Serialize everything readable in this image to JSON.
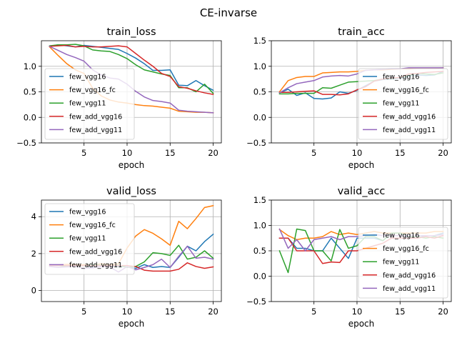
{
  "figure": {
    "suptitle": "CE-invarse"
  },
  "colors": {
    "few_vgg16": "#1f77b4",
    "few_vgg16_fc": "#ff7f0e",
    "few_vgg11": "#2ca02c",
    "few_add_vgg16": "#d62728",
    "few_add_vgg11": "#9467bd"
  },
  "chart_data": [
    {
      "type": "line",
      "title": "train_loss",
      "xlabel": "epoch",
      "ylabel": "",
      "xlim": [
        0.05,
        20.95
      ],
      "ylim": [
        -0.5,
        1.5
      ],
      "xticks": [
        5,
        10,
        15,
        20
      ],
      "yticks": [
        -0.5,
        0.0,
        0.5,
        1.0
      ],
      "ytick_labels": [
        "−0.5",
        "0.0",
        "0.5",
        "1.0"
      ],
      "grid": true,
      "legend": "lower-left",
      "x": [
        1,
        2,
        3,
        4,
        5,
        6,
        7,
        8,
        9,
        10,
        11,
        12,
        13,
        14,
        15,
        16,
        17,
        18,
        19,
        20
      ],
      "series": [
        {
          "name": "few_vgg16",
          "values": [
            1.39,
            1.42,
            1.4,
            1.38,
            1.41,
            1.39,
            1.37,
            1.35,
            1.33,
            1.25,
            1.16,
            1.05,
            0.92,
            0.92,
            0.93,
            0.63,
            0.62,
            0.72,
            0.62,
            0.53
          ]
        },
        {
          "name": "few_vgg16_fc",
          "values": [
            1.38,
            1.21,
            1.05,
            0.93,
            0.86,
            0.57,
            0.42,
            0.34,
            0.3,
            0.28,
            0.25,
            0.23,
            0.22,
            0.2,
            0.18,
            0.12,
            0.11,
            0.1,
            0.1,
            0.09
          ]
        },
        {
          "name": "few_vgg11",
          "values": [
            1.4,
            1.42,
            1.42,
            1.43,
            1.4,
            1.32,
            1.3,
            1.29,
            1.23,
            1.15,
            1.03,
            0.93,
            0.89,
            0.85,
            0.82,
            0.58,
            0.58,
            0.5,
            0.65,
            0.47
          ]
        },
        {
          "name": "few_add_vgg16",
          "values": [
            1.39,
            1.4,
            1.41,
            1.38,
            1.39,
            1.38,
            1.38,
            1.39,
            1.4,
            1.38,
            1.25,
            1.12,
            1.0,
            0.86,
            0.8,
            0.6,
            0.57,
            0.52,
            0.48,
            0.45
          ]
        },
        {
          "name": "few_add_vgg11",
          "values": [
            1.39,
            1.31,
            1.23,
            1.17,
            1.1,
            0.93,
            0.83,
            0.77,
            0.75,
            0.65,
            0.51,
            0.4,
            0.33,
            0.31,
            0.28,
            0.14,
            0.12,
            0.11,
            0.1,
            0.09
          ]
        }
      ]
    },
    {
      "type": "line",
      "title": "train_acc",
      "xlabel": "epoch",
      "ylabel": "",
      "xlim": [
        0.05,
        20.95
      ],
      "ylim": [
        -0.5,
        1.5
      ],
      "xticks": [
        5,
        10,
        15,
        20
      ],
      "yticks": [
        -0.5,
        0.0,
        0.5,
        1.0,
        1.5
      ],
      "ytick_labels": [
        "−0.5",
        "0.0",
        "0.5",
        "1.0",
        "1.5"
      ],
      "grid": true,
      "legend": "lower-right",
      "x": [
        1,
        2,
        3,
        4,
        5,
        6,
        7,
        8,
        9,
        10,
        11,
        12,
        13,
        14,
        15,
        16,
        17,
        18,
        19,
        20
      ],
      "series": [
        {
          "name": "few_vgg16",
          "values": [
            0.48,
            0.55,
            0.43,
            0.48,
            0.37,
            0.36,
            0.38,
            0.5,
            0.47,
            0.53,
            0.62,
            0.71,
            0.74,
            0.75,
            0.77,
            0.8,
            0.83,
            0.82,
            0.83,
            0.9
          ]
        },
        {
          "name": "few_vgg16_fc",
          "values": [
            0.5,
            0.72,
            0.78,
            0.8,
            0.8,
            0.87,
            0.88,
            0.89,
            0.89,
            0.9,
            0.92,
            0.93,
            0.93,
            0.94,
            0.95,
            0.95,
            0.96,
            0.96,
            0.96,
            0.97
          ]
        },
        {
          "name": "few_vgg11",
          "values": [
            0.46,
            0.46,
            0.47,
            0.47,
            0.47,
            0.58,
            0.57,
            0.63,
            0.69,
            0.7,
            0.71,
            0.72,
            0.75,
            0.76,
            0.78,
            0.82,
            0.86,
            0.85,
            0.84,
            0.87
          ]
        },
        {
          "name": "few_add_vgg16",
          "values": [
            0.49,
            0.49,
            0.5,
            0.51,
            0.52,
            0.45,
            0.45,
            0.44,
            0.46,
            0.54,
            0.6,
            0.71,
            0.75,
            0.77,
            0.78,
            0.85,
            0.86,
            0.88,
            0.89,
            0.9
          ]
        },
        {
          "name": "few_add_vgg11",
          "values": [
            0.48,
            0.58,
            0.66,
            0.69,
            0.72,
            0.79,
            0.81,
            0.82,
            0.81,
            0.85,
            0.92,
            0.93,
            0.94,
            0.95,
            0.95,
            0.97,
            0.97,
            0.97,
            0.97,
            0.97
          ]
        }
      ]
    },
    {
      "type": "line",
      "title": "valid_loss",
      "xlabel": "epoch",
      "ylabel": "",
      "xlim": [
        0.05,
        20.95
      ],
      "ylim": [
        -0.6,
        4.9
      ],
      "xticks": [
        5,
        10,
        15,
        20
      ],
      "yticks": [
        0,
        2,
        4
      ],
      "ytick_labels": [
        "0",
        "2",
        "4"
      ],
      "grid": true,
      "legend": "upper-left",
      "x": [
        1,
        2,
        3,
        4,
        5,
        6,
        7,
        8,
        9,
        10,
        11,
        12,
        13,
        14,
        15,
        16,
        17,
        18,
        19,
        20
      ],
      "series": [
        {
          "name": "few_vgg16",
          "values": [
            1.35,
            1.34,
            1.35,
            1.33,
            1.35,
            1.25,
            1.3,
            1.32,
            1.31,
            1.28,
            1.2,
            1.4,
            1.25,
            1.3,
            1.25,
            1.8,
            2.4,
            2.15,
            2.65,
            3.05
          ]
        },
        {
          "name": "few_vgg16_fc",
          "values": [
            1.4,
            1.38,
            1.42,
            1.4,
            1.4,
            1.38,
            1.45,
            1.4,
            1.45,
            2.3,
            2.95,
            3.3,
            3.1,
            2.8,
            2.45,
            3.75,
            3.35,
            3.9,
            4.5,
            4.6
          ]
        },
        {
          "name": "few_vgg11",
          "values": [
            1.4,
            1.35,
            1.3,
            1.3,
            1.35,
            1.4,
            1.38,
            1.35,
            1.38,
            1.25,
            1.3,
            1.55,
            2.05,
            2.0,
            1.9,
            2.45,
            1.7,
            1.8,
            2.15,
            1.75
          ]
        },
        {
          "name": "few_add_vgg16",
          "values": [
            1.35,
            1.35,
            1.35,
            1.35,
            1.35,
            1.35,
            1.35,
            1.35,
            1.35,
            1.35,
            1.3,
            1.1,
            1.05,
            1.05,
            1.05,
            1.15,
            1.5,
            1.3,
            1.2,
            1.28
          ]
        },
        {
          "name": "few_add_vgg11",
          "values": [
            1.3,
            1.25,
            1.28,
            1.3,
            1.2,
            1.22,
            1.3,
            1.28,
            1.0,
            1.3,
            1.12,
            1.25,
            1.4,
            1.7,
            1.25,
            1.85,
            2.4,
            1.75,
            1.8,
            1.7
          ]
        }
      ]
    },
    {
      "type": "line",
      "title": "valid_acc",
      "xlabel": "epoch",
      "ylabel": "",
      "xlim": [
        0.05,
        20.95
      ],
      "ylim": [
        -0.5,
        1.5
      ],
      "xticks": [
        5,
        10,
        15,
        20
      ],
      "yticks": [
        -0.5,
        0.0,
        0.5,
        1.0,
        1.5
      ],
      "ytick_labels": [
        "−0.5",
        "0.0",
        "0.5",
        "1.0",
        "1.5"
      ],
      "grid": true,
      "legend": "lower-right",
      "x": [
        1,
        2,
        3,
        4,
        5,
        6,
        7,
        8,
        9,
        10,
        11,
        12,
        13,
        14,
        15,
        16,
        17,
        18,
        19,
        20
      ],
      "series": [
        {
          "name": "few_vgg16",
          "values": [
            0.75,
            0.75,
            0.55,
            0.55,
            0.5,
            0.5,
            0.75,
            0.55,
            0.35,
            0.75,
            0.75,
            0.75,
            0.7,
            0.85,
            0.85,
            0.75,
            0.75,
            0.8,
            0.8,
            0.85
          ]
        },
        {
          "name": "few_vgg16_fc",
          "values": [
            0.92,
            0.8,
            0.72,
            0.75,
            0.75,
            0.78,
            0.88,
            0.82,
            0.85,
            0.82,
            0.85,
            0.88,
            0.85,
            0.85,
            0.85,
            0.85,
            0.85,
            0.85,
            0.88,
            0.88
          ]
        },
        {
          "name": "few_vgg11",
          "values": [
            0.5,
            0.07,
            0.93,
            0.9,
            0.5,
            0.5,
            0.3,
            0.92,
            0.55,
            0.6,
            0.78,
            0.78,
            0.7,
            0.85,
            0.85,
            0.78,
            0.78,
            0.75,
            0.78,
            0.75
          ]
        },
        {
          "name": "few_add_vgg16",
          "values": [
            0.75,
            0.75,
            0.5,
            0.5,
            0.5,
            0.25,
            0.28,
            0.27,
            0.5,
            0.5,
            0.55,
            0.6,
            0.65,
            0.75,
            0.75,
            0.75,
            0.75,
            0.78,
            0.75,
            0.8
          ]
        },
        {
          "name": "few_add_vgg11",
          "values": [
            0.93,
            0.55,
            0.72,
            0.5,
            0.72,
            0.75,
            0.78,
            0.72,
            0.78,
            0.78,
            0.8,
            0.82,
            0.8,
            0.8,
            0.8,
            0.8,
            0.8,
            0.8,
            0.8,
            0.82
          ]
        }
      ]
    }
  ]
}
